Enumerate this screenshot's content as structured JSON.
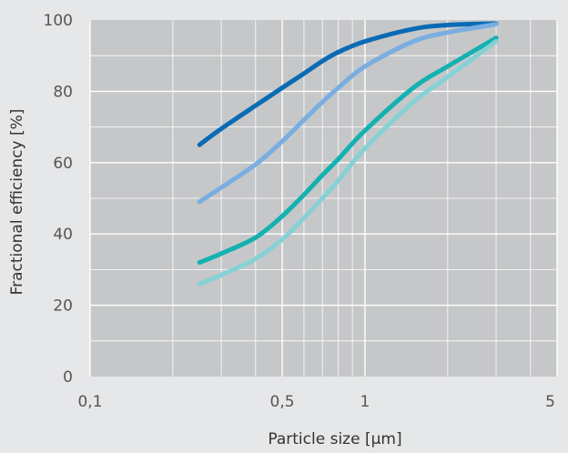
{
  "chart_data": {
    "type": "line",
    "title": "",
    "xlabel": "Particle size [µm]",
    "ylabel": "Fractional efficiency [%]",
    "x_scale": "log",
    "xlim": [
      0.1,
      5
    ],
    "ylim": [
      0,
      100
    ],
    "x_ticks": [
      {
        "value": 0.1,
        "label": "0,1"
      },
      {
        "value": 0.5,
        "label": "0,5"
      },
      {
        "value": 1,
        "label": "1"
      },
      {
        "value": 5,
        "label": "5"
      }
    ],
    "y_ticks": [
      {
        "value": 0,
        "label": "0"
      },
      {
        "value": 20,
        "label": "20"
      },
      {
        "value": 40,
        "label": "40"
      },
      {
        "value": 60,
        "label": "60"
      },
      {
        "value": 80,
        "label": "80"
      },
      {
        "value": 100,
        "label": "100"
      }
    ],
    "grid": true,
    "legend": "none",
    "plot_background": "#c6c7c9",
    "series": [
      {
        "color": "#0a6bb5",
        "points": [
          [
            0.25,
            65
          ],
          [
            0.3,
            69.5
          ],
          [
            0.4,
            76
          ],
          [
            0.5,
            81
          ],
          [
            0.6,
            85
          ],
          [
            0.7,
            88.5
          ],
          [
            0.8,
            91
          ],
          [
            1,
            94
          ],
          [
            1.5,
            97.5
          ],
          [
            2,
            98.6
          ],
          [
            3,
            99
          ]
        ]
      },
      {
        "color": "#7aaee0",
        "points": [
          [
            0.25,
            49
          ],
          [
            0.3,
            53
          ],
          [
            0.4,
            59.5
          ],
          [
            0.5,
            66
          ],
          [
            0.6,
            72
          ],
          [
            0.7,
            77
          ],
          [
            0.8,
            81
          ],
          [
            1,
            87
          ],
          [
            1.5,
            94
          ],
          [
            2,
            96.5
          ],
          [
            3,
            98.8
          ]
        ]
      },
      {
        "color": "#14b1b1",
        "points": [
          [
            0.25,
            32
          ],
          [
            0.3,
            34.5
          ],
          [
            0.4,
            39
          ],
          [
            0.5,
            45
          ],
          [
            0.6,
            51
          ],
          [
            0.7,
            56.5
          ],
          [
            0.8,
            61
          ],
          [
            1,
            69
          ],
          [
            1.5,
            81
          ],
          [
            2,
            87
          ],
          [
            3,
            95
          ]
        ]
      },
      {
        "color": "#86d1d5",
        "points": [
          [
            0.25,
            26
          ],
          [
            0.3,
            28.5
          ],
          [
            0.4,
            33
          ],
          [
            0.5,
            38.5
          ],
          [
            0.6,
            44.5
          ],
          [
            0.7,
            50
          ],
          [
            0.8,
            55
          ],
          [
            1,
            64
          ],
          [
            1.5,
            77
          ],
          [
            2,
            84
          ],
          [
            3,
            94
          ]
        ]
      }
    ]
  }
}
